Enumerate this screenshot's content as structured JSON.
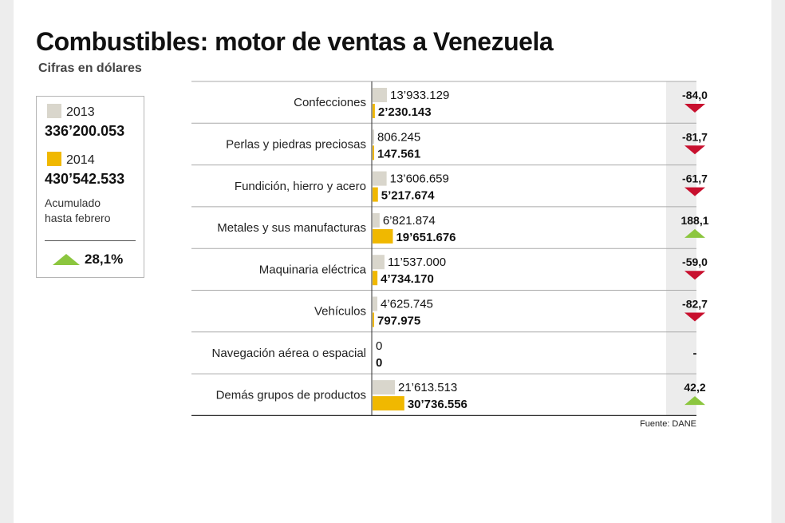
{
  "title": "Combustibles: motor de ventas a Venezuela",
  "subtitle": "Cifras en dólares",
  "legend": {
    "year_2013": "2013",
    "total_2013": "336’200.053",
    "year_2014": "2014",
    "total_2014": "430’542.533",
    "note_line1": "Acumulado",
    "note_line2": "hasta febrero",
    "total_change": "28,1%",
    "total_change_direction": "up"
  },
  "source": "Fuente: DANE",
  "colors": {
    "series_2013": "#d9d6cc",
    "series_2014": "#f0b800",
    "arrow_down": "#c8102e",
    "arrow_up": "#8cc63f",
    "change_column_bg": "#ececec"
  },
  "chart_data": {
    "type": "bar",
    "orientation": "horizontal",
    "categories": [
      "Confecciones",
      "Perlas y piedras preciosas",
      "Fundición, hierro y acero",
      "Metales y sus manufacturas",
      "Maquinaria eléctrica",
      "Vehículos",
      "Navegación aérea o espacial",
      "Demás grupos de productos"
    ],
    "series": [
      {
        "name": "2013",
        "values": [
          13933129,
          806245,
          13606659,
          6821874,
          11537000,
          4625745,
          0,
          21613513
        ],
        "labels": [
          "13’933.129",
          "806.245",
          "13’606.659",
          "6’821.874",
          "11’537.000",
          "4’625.745",
          "0",
          "21’613.513"
        ]
      },
      {
        "name": "2014",
        "values": [
          2230143,
          147561,
          5217674,
          19651676,
          4734170,
          797975,
          0,
          30736556
        ],
        "labels": [
          "2’230.143",
          "147.561",
          "5’217.674",
          "19’651.676",
          "4’734.170",
          "797.975",
          "0",
          "30’736.556"
        ]
      }
    ],
    "change_pct": {
      "values": [
        -84.0,
        -81.7,
        -61.7,
        188.1,
        -59.0,
        -82.7,
        null,
        42.2
      ],
      "labels": [
        "-84,0",
        "-81,7",
        "-61,7",
        "188,1",
        "-59,0",
        "-82,7",
        "-",
        "42,2"
      ]
    }
  }
}
